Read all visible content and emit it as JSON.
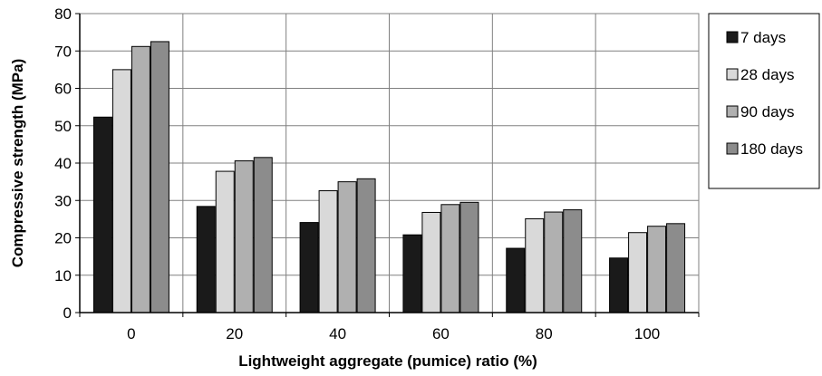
{
  "chart_data": {
    "type": "bar",
    "xlabel": "Lightweight aggregate (pumice) ratio (%)",
    "ylabel": "Compressive strength (MPa)",
    "categories": [
      "0",
      "20",
      "40",
      "60",
      "80",
      "100"
    ],
    "ylim": [
      0,
      80
    ],
    "yticks": [
      0,
      10,
      20,
      30,
      40,
      50,
      60,
      70,
      80
    ],
    "grid": true,
    "legend_position": "right",
    "series": [
      {
        "name": "7 days",
        "color": "#1a1a1a",
        "values": [
          52.3,
          28.4,
          24.1,
          20.8,
          17.2,
          14.6
        ]
      },
      {
        "name": "28 days",
        "color": "#d9d9d9",
        "values": [
          65.0,
          37.8,
          32.6,
          26.8,
          25.1,
          21.4
        ]
      },
      {
        "name": "90 days",
        "color": "#b0b0b0",
        "values": [
          71.2,
          40.6,
          35.0,
          28.9,
          26.9,
          23.1
        ]
      },
      {
        "name": "180 days",
        "color": "#8c8c8c",
        "values": [
          72.5,
          41.5,
          35.8,
          29.5,
          27.5,
          23.8
        ]
      }
    ]
  }
}
